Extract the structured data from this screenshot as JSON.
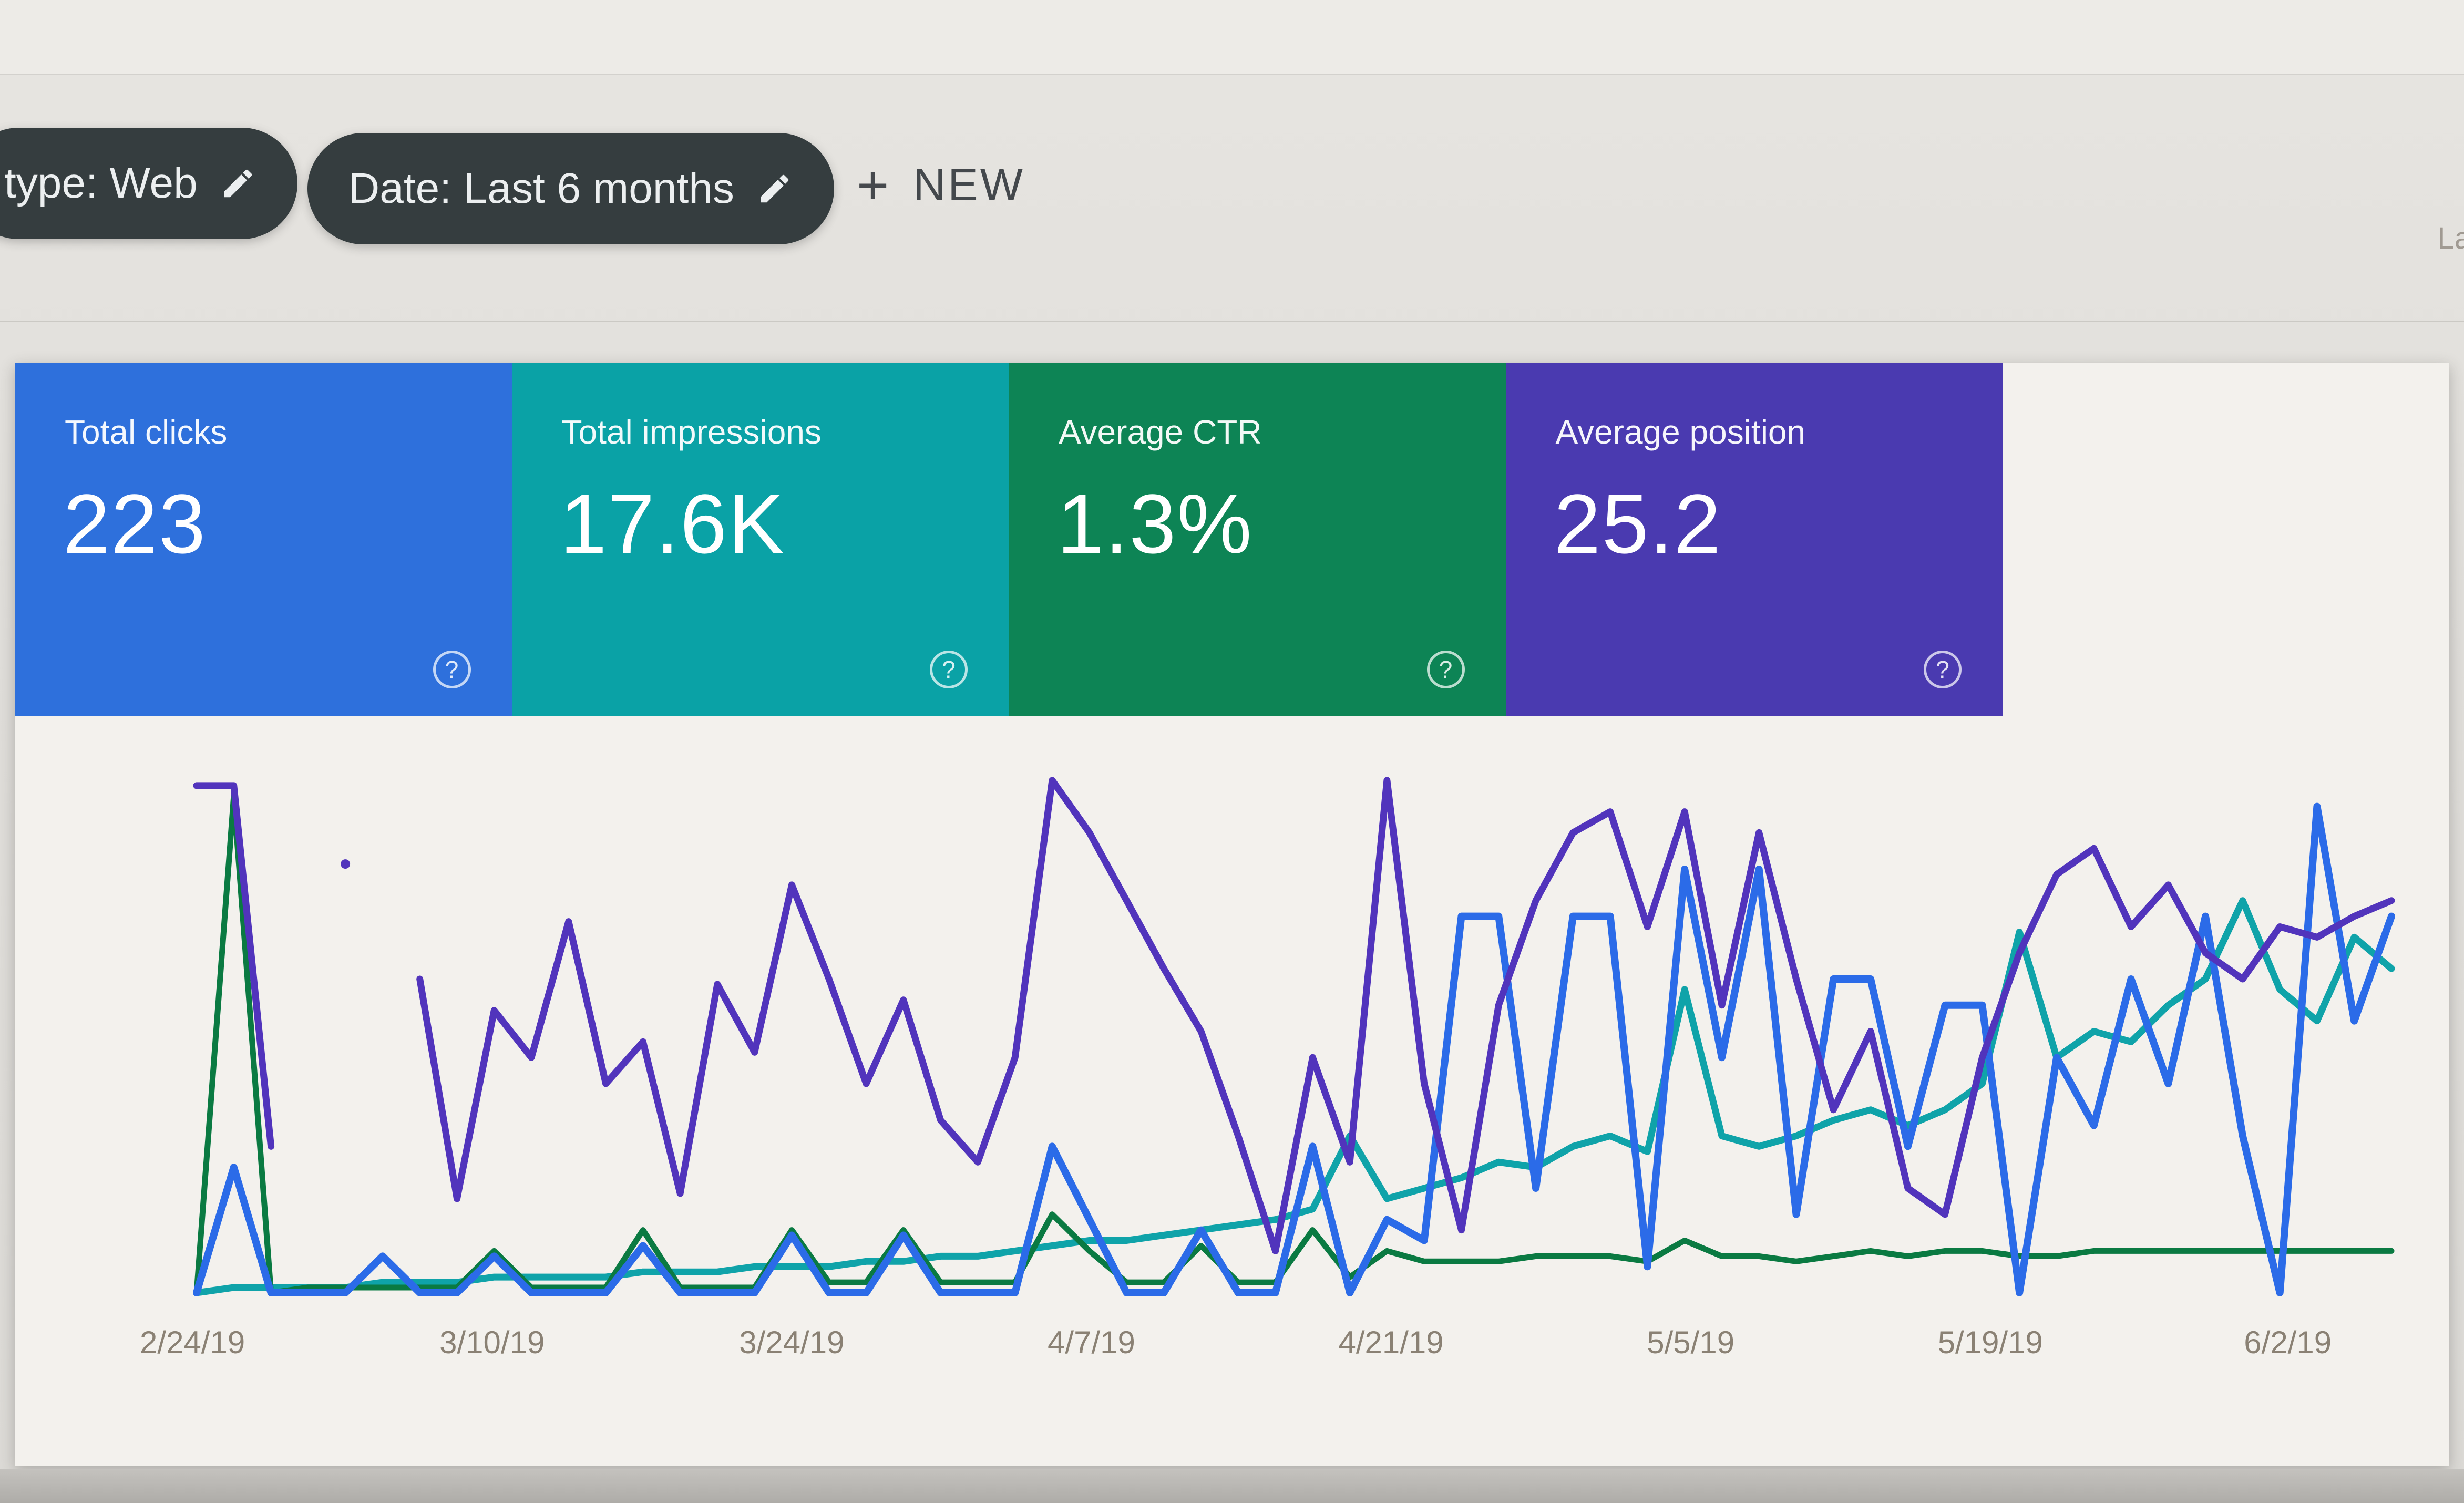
{
  "window": {
    "top_right_text": "La"
  },
  "toolbar": {
    "chips": [
      {
        "label": "type: Web",
        "icon": "edit-pencil"
      },
      {
        "label": "Date: Last 6 months",
        "icon": "edit-pencil"
      }
    ],
    "new_button": {
      "icon": "+",
      "label": "NEW"
    }
  },
  "summary_cards": [
    {
      "label": "Total clicks",
      "value": "223",
      "color": "#2e70dc",
      "help_icon": "?"
    },
    {
      "label": "Total impressions",
      "value": "17.6K",
      "color": "#0aa2a6",
      "help_icon": "?"
    },
    {
      "label": "Average CTR",
      "value": "1.3%",
      "color": "#0d8455",
      "help_icon": "?"
    },
    {
      "label": "Average position",
      "value": "25.2",
      "color": "#4a3ab0",
      "help_icon": "?"
    }
  ],
  "chart_data": {
    "type": "line",
    "title": "Search performance over time (no on-chart title shown)",
    "xlabel": "",
    "ylabel": "",
    "y_unit": "percent of plot height (y axes not labeled in screenshot; values estimated 0-100)",
    "grid": false,
    "legend_position": "none (series colors match summary cards)",
    "x_range_dates": [
      "2/24/19",
      "6/8/19"
    ],
    "x_tick_labels": [
      "2/24/19",
      "3/10/19",
      "3/24/19",
      "4/7/19",
      "4/21/19",
      "5/5/19",
      "5/19/19",
      "6/2/19"
    ],
    "x_tick_positions_pct": [
      0,
      13.6,
      27.2,
      40.8,
      54.4,
      68.0,
      81.6,
      95.1
    ],
    "series": [
      {
        "name": "Total impressions",
        "color": "#0fa3a9",
        "stroke_width": 13,
        "values": [
          0,
          1,
          1,
          1,
          1,
          2,
          2,
          2,
          3,
          3,
          3,
          3,
          4,
          4,
          4,
          5,
          5,
          5,
          6,
          6,
          7,
          7,
          8,
          9,
          10,
          10,
          11,
          12,
          13,
          14,
          16,
          30,
          18,
          20,
          22,
          25,
          24,
          28,
          30,
          27,
          58,
          30,
          28,
          30,
          33,
          35,
          32,
          35,
          40,
          69,
          45,
          50,
          48,
          55,
          60,
          75,
          58,
          52,
          68,
          62
        ]
      },
      {
        "name": "Average CTR",
        "color": "#0a7a42",
        "stroke_width": 11,
        "values": [
          0,
          95,
          0,
          1,
          1,
          1,
          1,
          1,
          8,
          1,
          1,
          1,
          12,
          1,
          1,
          1,
          12,
          2,
          2,
          12,
          2,
          2,
          2,
          15,
          8,
          2,
          2,
          9,
          2,
          2,
          12,
          3,
          8,
          6,
          6,
          6,
          7,
          7,
          7,
          6,
          10,
          7,
          7,
          6,
          7,
          8,
          7,
          8,
          8,
          7,
          7,
          8,
          8,
          8,
          8,
          8,
          8,
          8,
          8,
          8
        ]
      },
      {
        "name": "Total clicks",
        "color": "#2b6be8",
        "stroke_width": 14,
        "values": [
          0,
          24,
          0,
          0,
          0,
          7,
          0,
          0,
          7,
          0,
          0,
          0,
          9,
          0,
          0,
          0,
          11,
          0,
          0,
          11,
          0,
          0,
          0,
          28,
          14,
          0,
          0,
          12,
          0,
          0,
          28,
          0,
          14,
          10,
          72,
          72,
          20,
          72,
          72,
          5,
          81,
          45,
          81,
          15,
          60,
          60,
          28,
          55,
          55,
          0,
          45,
          32,
          60,
          40,
          72,
          30,
          0,
          93,
          52,
          72
        ]
      },
      {
        "name": "Average position",
        "color": "#5134bc",
        "stroke_width": 13,
        "values": [
          97,
          97,
          28,
          null,
          82,
          null,
          60,
          18,
          54,
          45,
          71,
          40,
          48,
          19,
          59,
          46,
          78,
          60,
          40,
          56,
          33,
          25,
          45,
          98,
          88,
          75,
          62,
          50,
          30,
          8,
          45,
          25,
          98,
          40,
          12,
          55,
          75,
          88,
          92,
          70,
          92,
          55,
          88,
          60,
          35,
          50,
          20,
          15,
          45,
          65,
          80,
          85,
          70,
          78,
          65,
          60,
          70,
          68,
          72,
          75
        ]
      }
    ]
  }
}
